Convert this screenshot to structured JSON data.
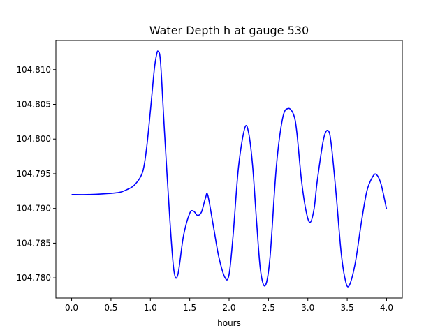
{
  "chart_data": {
    "type": "line",
    "title": "Water Depth h at gauge 530",
    "xlabel": "hours",
    "ylabel": "",
    "xlim": [
      -0.2,
      4.2
    ],
    "ylim": [
      104.7771,
      104.8142
    ],
    "xticks": [
      0.0,
      0.5,
      1.0,
      1.5,
      2.0,
      2.5,
      3.0,
      3.5,
      4.0
    ],
    "xtick_labels": [
      "0.0",
      "0.5",
      "1.0",
      "1.5",
      "2.0",
      "2.5",
      "3.0",
      "3.5",
      "4.0"
    ],
    "yticks": [
      104.78,
      104.785,
      104.79,
      104.795,
      104.8,
      104.805,
      104.81
    ],
    "ytick_labels": [
      "104.780",
      "104.785",
      "104.790",
      "104.795",
      "104.800",
      "104.805",
      "104.810"
    ],
    "grid": false,
    "series": [
      {
        "color": "#0000ff",
        "x": [
          0.0,
          0.2,
          0.4,
          0.6,
          0.7,
          0.8,
          0.9,
          0.95,
          1.0,
          1.05,
          1.08,
          1.1,
          1.13,
          1.18,
          1.25,
          1.3,
          1.35,
          1.42,
          1.5,
          1.55,
          1.6,
          1.65,
          1.7,
          1.73,
          1.8,
          1.87,
          1.95,
          2.0,
          2.05,
          2.12,
          2.2,
          2.25,
          2.3,
          2.35,
          2.4,
          2.46,
          2.52,
          2.6,
          2.68,
          2.75,
          2.82,
          2.86,
          2.92,
          2.98,
          3.03,
          3.08,
          3.12,
          3.2,
          3.26,
          3.3,
          3.36,
          3.42,
          3.47,
          3.52,
          3.6,
          3.68,
          3.75,
          3.82,
          3.87,
          3.93,
          4.0
        ],
        "y": [
          104.792,
          104.792,
          104.7921,
          104.7923,
          104.7927,
          104.7934,
          104.7952,
          104.7985,
          104.804,
          104.81,
          104.8122,
          104.8126,
          104.811,
          104.801,
          104.788,
          104.781,
          104.7805,
          104.786,
          104.7893,
          104.7896,
          104.789,
          104.7895,
          104.7915,
          104.7919,
          104.7875,
          104.783,
          104.78,
          104.7805,
          104.786,
          104.796,
          104.8016,
          104.8008,
          104.796,
          104.788,
          104.781,
          104.7789,
          104.783,
          104.796,
          104.803,
          104.8044,
          104.8035,
          104.801,
          104.794,
          104.7895,
          104.788,
          104.79,
          104.794,
          104.8,
          104.8012,
          104.799,
          104.792,
          104.784,
          104.78,
          104.7788,
          104.782,
          104.788,
          104.7925,
          104.7945,
          104.7949,
          104.7935,
          104.7899
        ]
      }
    ]
  }
}
